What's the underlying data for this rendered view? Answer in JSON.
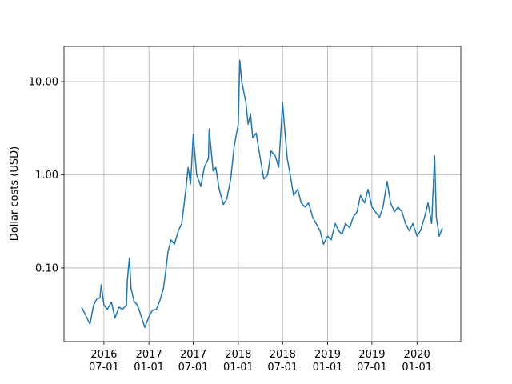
{
  "chart_data": {
    "type": "line",
    "ylabel": "Dollar costs (USD)",
    "color": "#1f77b4",
    "log_y": true,
    "grid": true,
    "xlim": [
      "2016-01-20",
      "2020-06-28"
    ],
    "ylim": [
      0.0162,
      23.9
    ],
    "xticks": [
      {
        "value": "2016-07-01",
        "label": [
          "2016",
          "07-01"
        ]
      },
      {
        "value": "2017-01-01",
        "label": [
          "2017",
          "01-01"
        ]
      },
      {
        "value": "2017-07-01",
        "label": [
          "2017",
          "07-01"
        ]
      },
      {
        "value": "2018-01-01",
        "label": [
          "2018",
          "01-01"
        ]
      },
      {
        "value": "2018-07-01",
        "label": [
          "2018",
          "07-01"
        ]
      },
      {
        "value": "2019-01-01",
        "label": [
          "2019",
          "01-01"
        ]
      },
      {
        "value": "2019-07-01",
        "label": [
          "2019",
          "07-01"
        ]
      },
      {
        "value": "2020-01-01",
        "label": [
          "2020",
          "01-01"
        ]
      }
    ],
    "yticks": [
      {
        "value": 0.1,
        "label": "0.10"
      },
      {
        "value": 1,
        "label": "1.00"
      },
      {
        "value": 10,
        "label": "10.00"
      }
    ],
    "x": [
      "2016-04-01",
      "2016-04-20",
      "2016-05-05",
      "2016-05-20",
      "2016-06-01",
      "2016-06-15",
      "2016-06-20",
      "2016-07-01",
      "2016-07-15",
      "2016-08-01",
      "2016-08-15",
      "2016-09-01",
      "2016-09-15",
      "2016-10-01",
      "2016-10-05",
      "2016-10-13",
      "2016-10-20",
      "2016-11-01",
      "2016-11-15",
      "2016-12-01",
      "2016-12-15",
      "2017-01-01",
      "2017-01-15",
      "2017-02-01",
      "2017-02-15",
      "2017-03-01",
      "2017-03-10",
      "2017-03-20",
      "2017-04-01",
      "2017-04-15",
      "2017-05-01",
      "2017-05-15",
      "2017-06-01",
      "2017-06-10",
      "2017-06-20",
      "2017-07-01",
      "2017-07-15",
      "2017-08-01",
      "2017-08-15",
      "2017-09-01",
      "2017-09-04",
      "2017-09-20",
      "2017-10-01",
      "2017-10-15",
      "2017-11-01",
      "2017-11-15",
      "2017-12-01",
      "2017-12-15",
      "2018-01-01",
      "2018-01-07",
      "2018-01-15",
      "2018-02-01",
      "2018-02-10",
      "2018-02-20",
      "2018-03-01",
      "2018-03-15",
      "2018-04-01",
      "2018-04-15",
      "2018-05-01",
      "2018-05-15",
      "2018-06-01",
      "2018-06-15",
      "2018-07-01",
      "2018-07-10",
      "2018-07-20",
      "2018-08-01",
      "2018-08-15",
      "2018-09-01",
      "2018-09-15",
      "2018-10-01",
      "2018-10-15",
      "2018-11-01",
      "2018-11-15",
      "2018-12-01",
      "2018-12-15",
      "2019-01-01",
      "2019-01-15",
      "2019-02-01",
      "2019-02-15",
      "2019-03-01",
      "2019-03-15",
      "2019-04-01",
      "2019-04-15",
      "2019-05-01",
      "2019-05-15",
      "2019-06-01",
      "2019-06-15",
      "2019-07-01",
      "2019-07-15",
      "2019-08-01",
      "2019-08-15",
      "2019-09-01",
      "2019-09-15",
      "2019-10-01",
      "2019-10-15",
      "2019-11-01",
      "2019-11-15",
      "2019-12-01",
      "2019-12-15",
      "2020-01-01",
      "2020-01-15",
      "2020-02-01",
      "2020-02-15",
      "2020-03-01",
      "2020-03-13",
      "2020-03-20",
      "2020-04-01",
      "2020-04-14"
    ],
    "values": [
      0.038,
      0.03,
      0.025,
      0.04,
      0.046,
      0.048,
      0.066,
      0.04,
      0.036,
      0.043,
      0.029,
      0.038,
      0.036,
      0.04,
      0.075,
      0.128,
      0.06,
      0.044,
      0.04,
      0.03,
      0.023,
      0.03,
      0.035,
      0.036,
      0.045,
      0.06,
      0.09,
      0.15,
      0.2,
      0.18,
      0.25,
      0.3,
      0.7,
      1.2,
      0.8,
      2.7,
      1.0,
      0.75,
      1.2,
      1.5,
      3.1,
      1.1,
      1.2,
      0.7,
      0.48,
      0.55,
      0.9,
      2.0,
      3.5,
      17,
      10,
      6,
      3.5,
      4.5,
      2.5,
      2.8,
      1.5,
      0.9,
      1.0,
      1.8,
      1.6,
      1.2,
      5.9,
      3.0,
      1.5,
      1.0,
      0.6,
      0.7,
      0.5,
      0.45,
      0.5,
      0.35,
      0.3,
      0.25,
      0.18,
      0.22,
      0.2,
      0.3,
      0.25,
      0.23,
      0.3,
      0.27,
      0.35,
      0.4,
      0.6,
      0.5,
      0.7,
      0.45,
      0.4,
      0.35,
      0.45,
      0.85,
      0.5,
      0.4,
      0.45,
      0.4,
      0.3,
      0.25,
      0.3,
      0.22,
      0.25,
      0.35,
      0.5,
      0.3,
      1.6,
      0.35,
      0.22,
      0.27
    ]
  }
}
